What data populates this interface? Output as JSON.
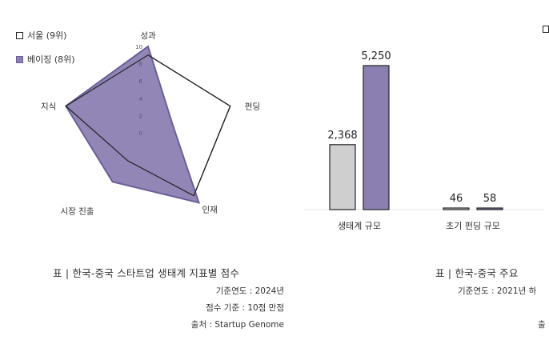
{
  "chart_data": [
    {
      "type": "radar",
      "axes": [
        "성과",
        "펀딩",
        "인재",
        "시장 진출",
        "지식"
      ],
      "ticks": [
        "10",
        "8",
        "6",
        "4",
        "2",
        "0"
      ],
      "scale_max": 10,
      "series": [
        {
          "name": "서울 (9위)",
          "values": [
            9,
            10,
            9,
            4,
            10
          ],
          "color": "#ffffff",
          "stroke": "#222222"
        },
        {
          "name": "베이징 (8위)",
          "values": [
            10,
            3,
            10,
            7,
            10
          ],
          "color": "#8b7fb1",
          "stroke": "#6b5f99"
        }
      ],
      "legend_position": "top-left"
    },
    {
      "type": "bar",
      "groups": [
        {
          "category": "생태계 규모",
          "values": [
            2368,
            5250
          ],
          "labels": [
            "2,368",
            "5,250"
          ]
        },
        {
          "category": "초기 펀딩 규모",
          "values": [
            46,
            58
          ],
          "labels": [
            "46",
            "58"
          ]
        }
      ],
      "series_colors": [
        "#cfcfcf",
        "#8b7fb1"
      ],
      "ylim": [
        0,
        5600
      ]
    }
  ],
  "captions": {
    "left": "표 | 한국-중국 스타트업 생태계 지표별 점수",
    "right": "표 | 한국-중국 주요"
  },
  "meta_left": {
    "year": "기준연도 : 2024년",
    "score": "점수 기준 : 10점 만점",
    "source": "출처 : Startup Genome"
  },
  "meta_right": {
    "year": "기준연도 : 2021년 하",
    "source": "출"
  }
}
